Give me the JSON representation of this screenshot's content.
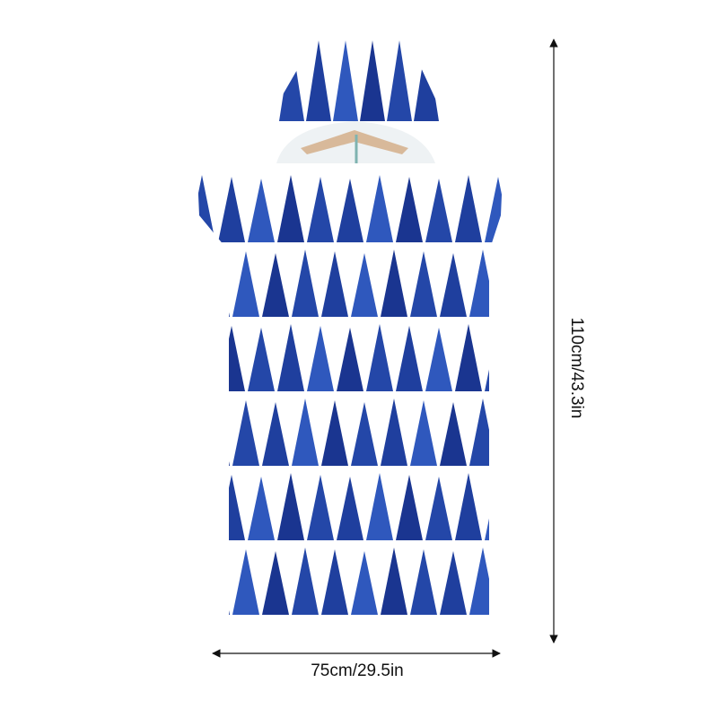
{
  "dimensions": {
    "height": "110cm/43.3in",
    "width": "75cm/29.5in"
  }
}
